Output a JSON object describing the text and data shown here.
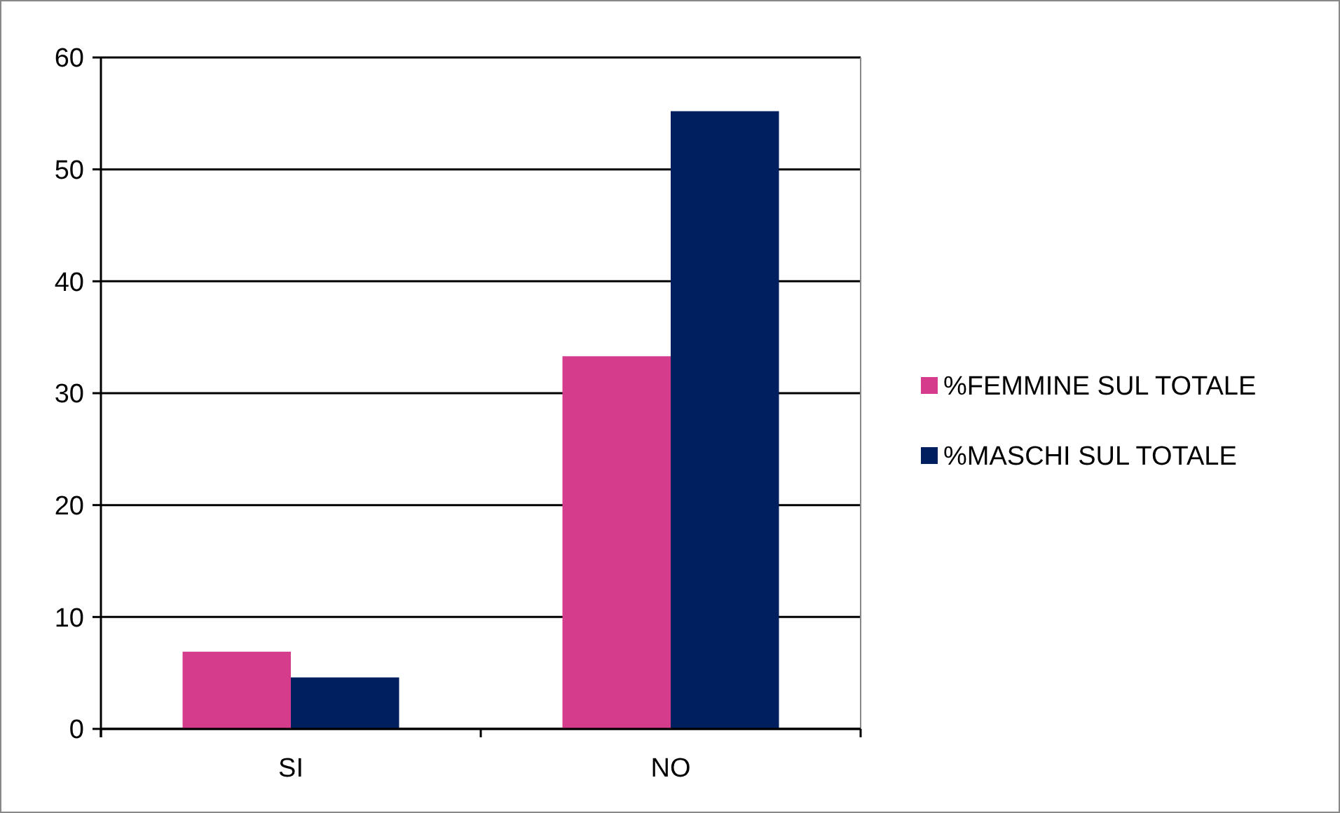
{
  "chart_data": {
    "type": "bar",
    "categories": [
      "SI",
      "NO"
    ],
    "series": [
      {
        "name": "%FEMMINE SUL TOTALE",
        "color": "#d63c8c",
        "values": [
          6.9,
          33.3
        ]
      },
      {
        "name": "%MASCHI SUL TOTALE",
        "color": "#001f5f",
        "values": [
          4.6,
          55.2
        ]
      }
    ],
    "ylim": [
      0,
      60
    ],
    "yticks": [
      0,
      10,
      20,
      30,
      40,
      50,
      60
    ],
    "grid": "y",
    "legend": "right"
  }
}
